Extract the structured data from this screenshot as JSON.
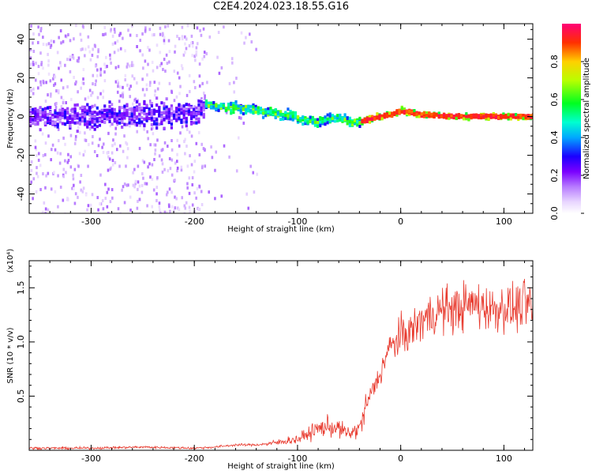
{
  "title": "C2E4.2024.023.18.55.G16",
  "chart_data": [
    {
      "type": "heatmap",
      "xlabel": "Height of straight line (km)",
      "ylabel": "Frequency (Hz)",
      "xlim": [
        -360,
        128
      ],
      "ylim": [
        -50,
        48
      ],
      "xticks": [
        -300,
        -200,
        -100,
        0,
        100
      ],
      "yticks": [
        -40,
        -20,
        0,
        20,
        40
      ],
      "colorbar": {
        "label": "Normalized spectral amplitude",
        "ticks": [
          0.0,
          0.2,
          0.4,
          0.6,
          0.8
        ],
        "tick_labels": [
          "0.0",
          "0.2",
          "0.4",
          "0.6",
          "0.8"
        ],
        "range": [
          0,
          1
        ],
        "colors": [
          "#ffffff",
          "#cc99ff",
          "#7700ff",
          "#0000ff",
          "#00ffff",
          "#00ff00",
          "#ffff00",
          "#ff8800",
          "#ff0000",
          "#ff0066"
        ]
      },
      "frequency_centerline": {
        "x": [
          -360,
          -300,
          -250,
          -200,
          -190,
          -170,
          -150,
          -130,
          -110,
          -90,
          -80,
          -70,
          -60,
          -50,
          -40,
          -30,
          -20,
          -10,
          0,
          20,
          50,
          80,
          110,
          128
        ],
        "y": [
          0,
          0,
          1,
          1,
          6,
          5,
          4,
          2,
          1,
          -2,
          -3,
          -1,
          -1,
          -3,
          -3,
          -1,
          0,
          1,
          3,
          1,
          0,
          0,
          0,
          0
        ]
      }
    },
    {
      "type": "line",
      "xlabel": "Height of straight line (km)",
      "ylabel": "SNR (10 * v/v)",
      "y_multiplier": "(x10⁴)",
      "xlim": [
        -360,
        128
      ],
      "ylim": [
        0,
        1.75
      ],
      "xticks": [
        -300,
        -200,
        -100,
        0,
        100
      ],
      "yticks": [
        0.5,
        1.0,
        1.5
      ],
      "ytick_labels": [
        "0.5",
        "1.0",
        "1.5"
      ],
      "color": "#e83a2e",
      "series": [
        {
          "x": [
            -360,
            -300,
            -250,
            -200,
            -180,
            -160,
            -140,
            -120,
            -110,
            -100,
            -90,
            -80,
            -70,
            -60,
            -50,
            -40,
            -35,
            -30,
            -25,
            -20,
            -15,
            -10,
            -5,
            0,
            10,
            20,
            30,
            40,
            50,
            60,
            70,
            80,
            90,
            100,
            110,
            120,
            128
          ],
          "y": [
            0.02,
            0.02,
            0.03,
            0.02,
            0.03,
            0.05,
            0.05,
            0.07,
            0.09,
            0.1,
            0.15,
            0.2,
            0.22,
            0.2,
            0.15,
            0.2,
            0.35,
            0.5,
            0.6,
            0.7,
            0.85,
            0.95,
            1.0,
            1.05,
            1.1,
            1.2,
            1.25,
            1.3,
            1.3,
            1.32,
            1.35,
            1.33,
            1.3,
            1.33,
            1.3,
            1.35,
            1.32
          ]
        }
      ]
    }
  ]
}
